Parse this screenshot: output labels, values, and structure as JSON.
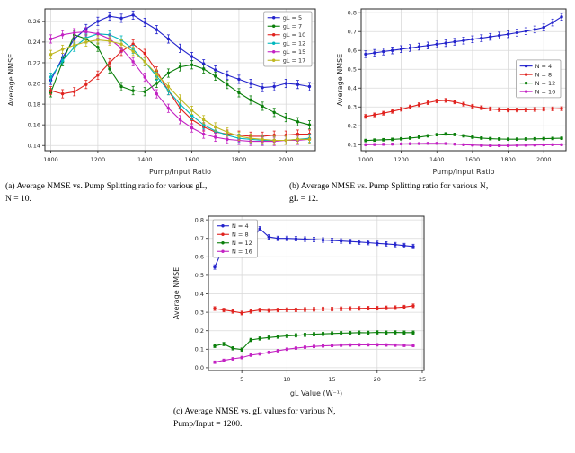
{
  "figure": {
    "captions": {
      "a": "(a) Average NMSE vs. Pump Splitting ratio for various gL,\nN = 10.",
      "b": "(b) Average NMSE vs. Pump Splitting ratio for various N,\ngL = 12.",
      "c": "(c) Average NMSE vs.  gL  values for various N,\nPump/Input = 1200."
    }
  },
  "colors": {
    "blue": "#2323cc",
    "green": "#0a7f0a",
    "red": "#e0221e",
    "cyan": "#00b7bd",
    "magenta": "#c322c3",
    "yellow": "#bfb71f",
    "grid": "#d9d9d9",
    "spine": "#2a2a2a"
  },
  "chart_data": [
    {
      "id": "a",
      "type": "line",
      "title": "",
      "xlabel": "Pump/Input Ratio",
      "ylabel": "Average NMSE",
      "grid": true,
      "legend_loc": "ne",
      "xlim": [
        975,
        2125
      ],
      "ylim": [
        0.135,
        0.272
      ],
      "x_ticks": [
        1000,
        1200,
        1400,
        1600,
        1800,
        2000
      ],
      "x_tick_labels": [
        "1000",
        "1200",
        "1400",
        "1600",
        "1800",
        "2000"
      ],
      "y_ticks": [
        0.14,
        0.16,
        0.18,
        0.2,
        0.22,
        0.24,
        0.26
      ],
      "y_tick_labels": [
        "0.14",
        "0.16",
        "0.18",
        "0.20",
        "0.22",
        "0.24",
        "0.26"
      ],
      "x": [
        1000,
        1050,
        1100,
        1150,
        1200,
        1250,
        1300,
        1350,
        1400,
        1450,
        1500,
        1550,
        1600,
        1650,
        1700,
        1750,
        1800,
        1850,
        1900,
        1950,
        2000,
        2050,
        2100
      ],
      "series": [
        {
          "name": "gL = 5",
          "color": "#2323cc",
          "err": 0.004,
          "values": [
            0.203,
            0.225,
            0.243,
            0.253,
            0.26,
            0.265,
            0.263,
            0.266,
            0.259,
            0.252,
            0.243,
            0.234,
            0.226,
            0.219,
            0.213,
            0.208,
            0.204,
            0.2,
            0.196,
            0.197,
            0.2,
            0.199,
            0.197
          ]
        },
        {
          "name": "gL = 7",
          "color": "#0a7f0a",
          "err": 0.004,
          "values": [
            0.191,
            0.221,
            0.247,
            0.243,
            0.235,
            0.214,
            0.197,
            0.193,
            0.192,
            0.2,
            0.21,
            0.216,
            0.218,
            0.214,
            0.207,
            0.199,
            0.191,
            0.184,
            0.178,
            0.172,
            0.167,
            0.163,
            0.16
          ]
        },
        {
          "name": "gL = 10",
          "color": "#e0221e",
          "err": 0.004,
          "values": [
            0.193,
            0.19,
            0.192,
            0.199,
            0.208,
            0.22,
            0.231,
            0.238,
            0.229,
            0.212,
            0.193,
            0.176,
            0.165,
            0.158,
            0.153,
            0.151,
            0.15,
            0.149,
            0.149,
            0.15,
            0.15,
            0.151,
            0.151
          ]
        },
        {
          "name": "gL = 12",
          "color": "#00b7bd",
          "err": 0.004,
          "values": [
            0.206,
            0.222,
            0.235,
            0.244,
            0.248,
            0.247,
            0.242,
            0.233,
            0.221,
            0.207,
            0.193,
            0.18,
            0.169,
            0.16,
            0.154,
            0.15,
            0.147,
            0.146,
            0.145,
            0.145,
            0.145,
            0.146,
            0.147
          ]
        },
        {
          "name": "gL = 15",
          "color": "#c322c3",
          "err": 0.004,
          "values": [
            0.243,
            0.247,
            0.249,
            0.25,
            0.248,
            0.243,
            0.234,
            0.221,
            0.206,
            0.19,
            0.176,
            0.165,
            0.157,
            0.151,
            0.148,
            0.146,
            0.145,
            0.144,
            0.144,
            0.144,
            0.145,
            0.145,
            0.146
          ]
        },
        {
          "name": "gL = 17",
          "color": "#bfb71f",
          "err": 0.004,
          "values": [
            0.228,
            0.233,
            0.237,
            0.24,
            0.242,
            0.241,
            0.238,
            0.231,
            0.221,
            0.209,
            0.197,
            0.185,
            0.174,
            0.165,
            0.158,
            0.153,
            0.149,
            0.147,
            0.146,
            0.145,
            0.145,
            0.146,
            0.146
          ]
        }
      ]
    },
    {
      "id": "b",
      "type": "line",
      "title": "",
      "xlabel": "Pump/Input Ratio",
      "ylabel": "Average NMSE",
      "grid": true,
      "legend_loc": "e",
      "xlim": [
        975,
        2125
      ],
      "ylim": [
        0.068,
        0.82
      ],
      "x_ticks": [
        1000,
        1200,
        1400,
        1600,
        1800,
        2000
      ],
      "x_tick_labels": [
        "1000",
        "1200",
        "1400",
        "1600",
        "1800",
        "2000"
      ],
      "y_ticks": [
        0.1,
        0.2,
        0.3,
        0.4,
        0.5,
        0.6,
        0.7,
        0.8
      ],
      "y_tick_labels": [
        "0.1",
        "0.2",
        "0.3",
        "0.4",
        "0.5",
        "0.6",
        "0.7",
        "0.8"
      ],
      "x": [
        1000,
        1050,
        1100,
        1150,
        1200,
        1250,
        1300,
        1350,
        1400,
        1450,
        1500,
        1550,
        1600,
        1650,
        1700,
        1750,
        1800,
        1850,
        1900,
        1950,
        2000,
        2050,
        2100
      ],
      "series": [
        {
          "name": "N = 4",
          "color": "#2323cc",
          "err": 0.018,
          "values": [
            0.58,
            0.587,
            0.594,
            0.6,
            0.607,
            0.613,
            0.62,
            0.626,
            0.633,
            0.639,
            0.646,
            0.652,
            0.659,
            0.665,
            0.672,
            0.679,
            0.686,
            0.694,
            0.702,
            0.711,
            0.722,
            0.748,
            0.778
          ]
        },
        {
          "name": "N = 8",
          "color": "#e0221e",
          "err": 0.01,
          "values": [
            0.25,
            0.258,
            0.267,
            0.277,
            0.288,
            0.3,
            0.312,
            0.323,
            0.332,
            0.335,
            0.327,
            0.315,
            0.304,
            0.296,
            0.29,
            0.286,
            0.284,
            0.284,
            0.285,
            0.287,
            0.289,
            0.29,
            0.291
          ]
        },
        {
          "name": "N = 12",
          "color": "#0a7f0a",
          "err": 0.007,
          "values": [
            0.122,
            0.124,
            0.126,
            0.128,
            0.131,
            0.135,
            0.14,
            0.147,
            0.153,
            0.157,
            0.154,
            0.147,
            0.14,
            0.135,
            0.132,
            0.13,
            0.129,
            0.129,
            0.13,
            0.131,
            0.132,
            0.133,
            0.134
          ]
        },
        {
          "name": "N = 16",
          "color": "#c322c3",
          "err": 0.005,
          "values": [
            0.1,
            0.101,
            0.102,
            0.103,
            0.104,
            0.105,
            0.106,
            0.107,
            0.107,
            0.106,
            0.103,
            0.1,
            0.098,
            0.096,
            0.095,
            0.095,
            0.095,
            0.096,
            0.097,
            0.098,
            0.099,
            0.1,
            0.1
          ]
        }
      ]
    },
    {
      "id": "c",
      "type": "line",
      "title": "",
      "xlabel": "gL Value (W⁻¹)",
      "ylabel": "Average NMSE",
      "grid": true,
      "legend_loc": "nw",
      "xlim": [
        1.3,
        25.2
      ],
      "ylim": [
        -0.015,
        0.82
      ],
      "x_ticks": [
        5,
        10,
        15,
        20,
        25
      ],
      "x_tick_labels": [
        "5",
        "10",
        "15",
        "20",
        "25"
      ],
      "y_ticks": [
        0.0,
        0.1,
        0.2,
        0.3,
        0.4,
        0.5,
        0.6,
        0.7,
        0.8
      ],
      "y_tick_labels": [
        "0.0",
        "0.1",
        "0.2",
        "0.3",
        "0.4",
        "0.5",
        "0.6",
        "0.7",
        "0.8"
      ],
      "x": [
        2,
        3,
        4,
        5,
        6,
        7,
        8,
        9,
        10,
        11,
        12,
        13,
        14,
        15,
        16,
        17,
        18,
        19,
        20,
        21,
        22,
        23,
        24
      ],
      "series": [
        {
          "name": "N = 4",
          "color": "#2323cc",
          "err": 0.012,
          "values": [
            0.545,
            0.655,
            0.665,
            0.673,
            0.68,
            0.752,
            0.708,
            0.7,
            0.7,
            0.698,
            0.696,
            0.694,
            0.691,
            0.689,
            0.686,
            0.683,
            0.68,
            0.677,
            0.673,
            0.67,
            0.666,
            0.661,
            0.656
          ]
        },
        {
          "name": "N = 8",
          "color": "#e0221e",
          "err": 0.01,
          "values": [
            0.32,
            0.312,
            0.305,
            0.296,
            0.305,
            0.312,
            0.31,
            0.312,
            0.314,
            0.313,
            0.315,
            0.316,
            0.318,
            0.317,
            0.319,
            0.32,
            0.321,
            0.322,
            0.322,
            0.324,
            0.325,
            0.328,
            0.335
          ]
        },
        {
          "name": "N = 12",
          "color": "#0a7f0a",
          "err": 0.009,
          "values": [
            0.118,
            0.128,
            0.105,
            0.098,
            0.15,
            0.158,
            0.163,
            0.168,
            0.172,
            0.175,
            0.178,
            0.181,
            0.183,
            0.185,
            0.187,
            0.188,
            0.19,
            0.189,
            0.191,
            0.19,
            0.191,
            0.19,
            0.19
          ]
        },
        {
          "name": "N = 16",
          "color": "#c322c3",
          "err": 0.007,
          "values": [
            0.03,
            0.04,
            0.048,
            0.055,
            0.068,
            0.075,
            0.083,
            0.092,
            0.1,
            0.106,
            0.111,
            0.115,
            0.118,
            0.12,
            0.122,
            0.123,
            0.124,
            0.124,
            0.124,
            0.123,
            0.122,
            0.121,
            0.12
          ]
        }
      ]
    }
  ]
}
